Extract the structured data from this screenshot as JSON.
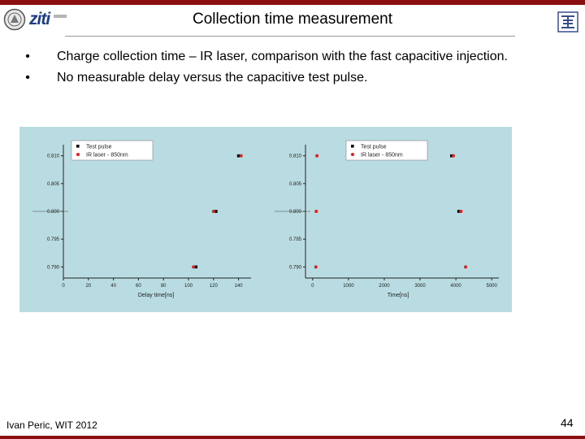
{
  "header": {
    "title": "Collection time measurement",
    "logo_text": "ziti",
    "bar_color": "#8b0f0f"
  },
  "bullets": [
    "Charge collection time – IR laser, comparison with the fast capacitive injection.",
    "No measurable delay versus the capacitive test pulse."
  ],
  "chart_data": [
    {
      "type": "scatter",
      "xlabel": "Delay time[ns]",
      "xlim": [
        0,
        150
      ],
      "xticks": [
        0,
        20,
        40,
        60,
        80,
        100,
        120,
        140
      ],
      "ylim": [
        0.788,
        0.812
      ],
      "yticks": [
        "0.790",
        "0.795",
        "0.800",
        "0.805",
        "0.810"
      ],
      "background": "#b8dce1",
      "legend": "top-left",
      "series": [
        {
          "name": "Test pulse",
          "color": "#000000",
          "x": [
            140,
            122,
            106
          ],
          "y": [
            0.81,
            0.8,
            0.79
          ]
        },
        {
          "name": "IR laser - 850nm",
          "color": "#e02020",
          "x": [
            142,
            120,
            104
          ],
          "y": [
            0.81,
            0.8,
            0.79
          ]
        }
      ]
    },
    {
      "type": "scatter",
      "xlabel": "Time[ns]",
      "xlim": [
        -200,
        5200
      ],
      "xticks": [
        0,
        1000,
        2000,
        3000,
        4000,
        5000
      ],
      "ylim": [
        0.788,
        0.812
      ],
      "yticks": [
        "0.790",
        "0.795",
        "0.800",
        "0.805",
        "0.810"
      ],
      "background": "#b8dce1",
      "legend": "top-right",
      "series": [
        {
          "name": "Test pulse",
          "color": "#000000",
          "x": [
            3880,
            4080
          ],
          "y": [
            0.81,
            0.8
          ]
        },
        {
          "name": "IR laser - 850nm",
          "color": "#e02020",
          "x": [
            120,
            100,
            90,
            3930,
            4140,
            4270
          ],
          "y": [
            0.81,
            0.8,
            0.79,
            0.81,
            0.8,
            0.79
          ]
        }
      ]
    }
  ],
  "footer": {
    "author": "Ivan Peric, WIT 2012",
    "page_number": "44"
  }
}
